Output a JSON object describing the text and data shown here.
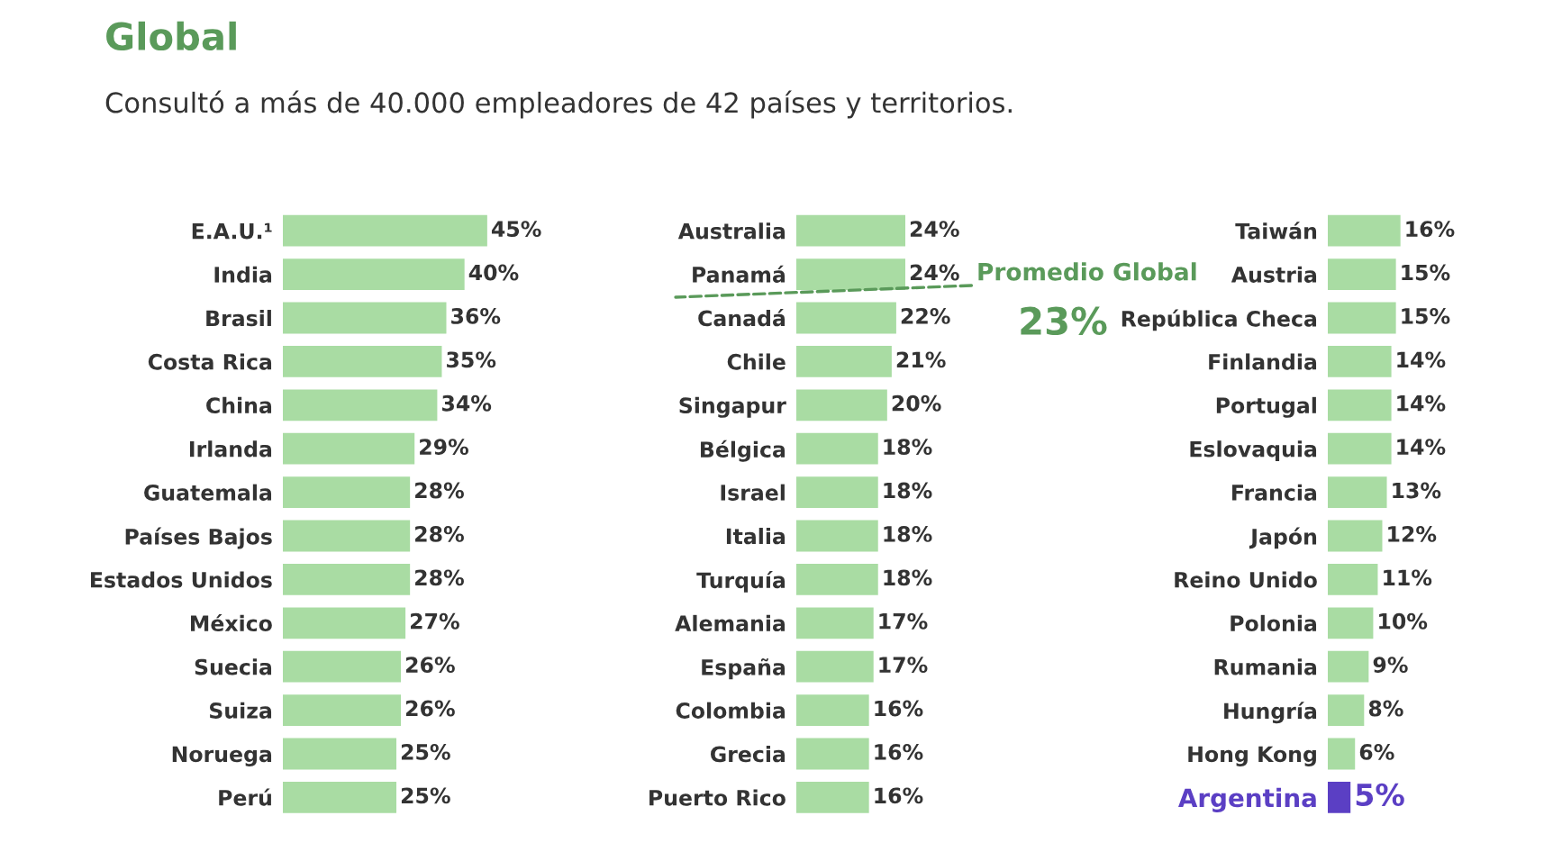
{
  "chart_data": [
    {
      "type": "bar",
      "orientation": "horizontal",
      "title": "Global",
      "subtitle": "Consultó a más de 40.000 empleadores de 42 países y territorios.",
      "categories": [
        "E.A.U.¹",
        "India",
        "Brasil",
        "Costa Rica",
        "China",
        "Irlanda",
        "Guatemala",
        "Países Bajos",
        "Estados Unidos",
        "México",
        "Suecia",
        "Suiza",
        "Noruega",
        "Perú"
      ],
      "values": [
        45,
        40,
        36,
        35,
        34,
        29,
        28,
        28,
        28,
        27,
        26,
        26,
        25,
        25
      ],
      "value_labels": [
        "45%",
        "40%",
        "36%",
        "35%",
        "34%",
        "29%",
        "28%",
        "28%",
        "28%",
        "27%",
        "26%",
        "26%",
        "25%",
        "25%"
      ],
      "color": "#a9dca3",
      "tick_labels": "y"
    },
    {
      "type": "bar",
      "orientation": "horizontal",
      "categories": [
        "Australia",
        "Panamá",
        "Canadá",
        "Chile",
        "Singapur",
        "Bélgica",
        "Israel",
        "Italia",
        "Turquía",
        "Alemania",
        "España",
        "Colombia",
        "Grecia",
        "Puerto Rico"
      ],
      "values": [
        24,
        24,
        22,
        21,
        20,
        18,
        18,
        18,
        18,
        17,
        17,
        16,
        16,
        16
      ],
      "value_labels": [
        "24%",
        "24%",
        "22%",
        "21%",
        "20%",
        "18%",
        "18%",
        "18%",
        "18%",
        "17%",
        "17%",
        "16%",
        "16%",
        "16%"
      ],
      "color": "#a9dca3",
      "tick_labels": "y",
      "annotations": [
        "Promedio Global",
        "23%"
      ]
    },
    {
      "type": "bar",
      "orientation": "horizontal",
      "categories": [
        "Taiwán",
        "Austria",
        "República Checa",
        "Finlandia",
        "Portugal",
        "Eslovaquia",
        "Francia",
        "Japón",
        "Reino Unido",
        "Polonia",
        "Rumania",
        "Hungría",
        "Hong Kong",
        "Argentina"
      ],
      "values": [
        16,
        15,
        15,
        14,
        14,
        14,
        13,
        12,
        11,
        10,
        9,
        8,
        6,
        5
      ],
      "value_labels": [
        "16%",
        "15%",
        "15%",
        "14%",
        "14%",
        "14%",
        "13%",
        "12%",
        "11%",
        "10%",
        "9%",
        "8%",
        "6%",
        "5%"
      ],
      "colors": [
        "#a9dca3",
        "#a9dca3",
        "#a9dca3",
        "#a9dca3",
        "#a9dca3",
        "#a9dca3",
        "#a9dca3",
        "#a9dca3",
        "#a9dca3",
        "#a9dca3",
        "#a9dca3",
        "#a9dca3",
        "#a9dca3",
        "#5b3fc4"
      ],
      "tick_labels": "y"
    }
  ]
}
